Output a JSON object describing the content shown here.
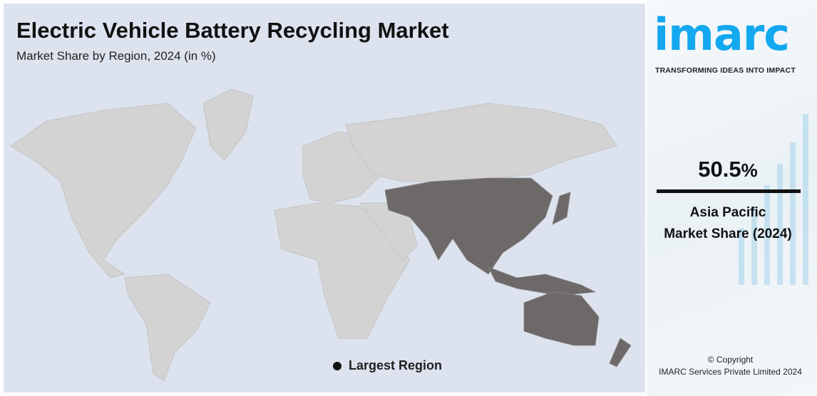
{
  "header": {
    "title": "Electric Vehicle Battery Recycling Market",
    "subtitle": "Market Share by Region, 2024 (in %)"
  },
  "map": {
    "highlight_region": "Asia Pacific",
    "highlight_color": "#6d6969",
    "land_color": "#d3d3d3",
    "ocean_color": "#dce3ee"
  },
  "legend": {
    "label": "Largest Region"
  },
  "sidebar": {
    "logo": "imarc",
    "tagline": "TRANSFORMING IDEAS INTO IMPACT",
    "share_value": "50.5",
    "share_unit": "%",
    "region": "Asia Pacific",
    "caption": "Market Share (2024)",
    "copyright": "© Copyright",
    "company": "IMARC Services Private Limited 2024",
    "brand_color": "#13a8f0"
  }
}
